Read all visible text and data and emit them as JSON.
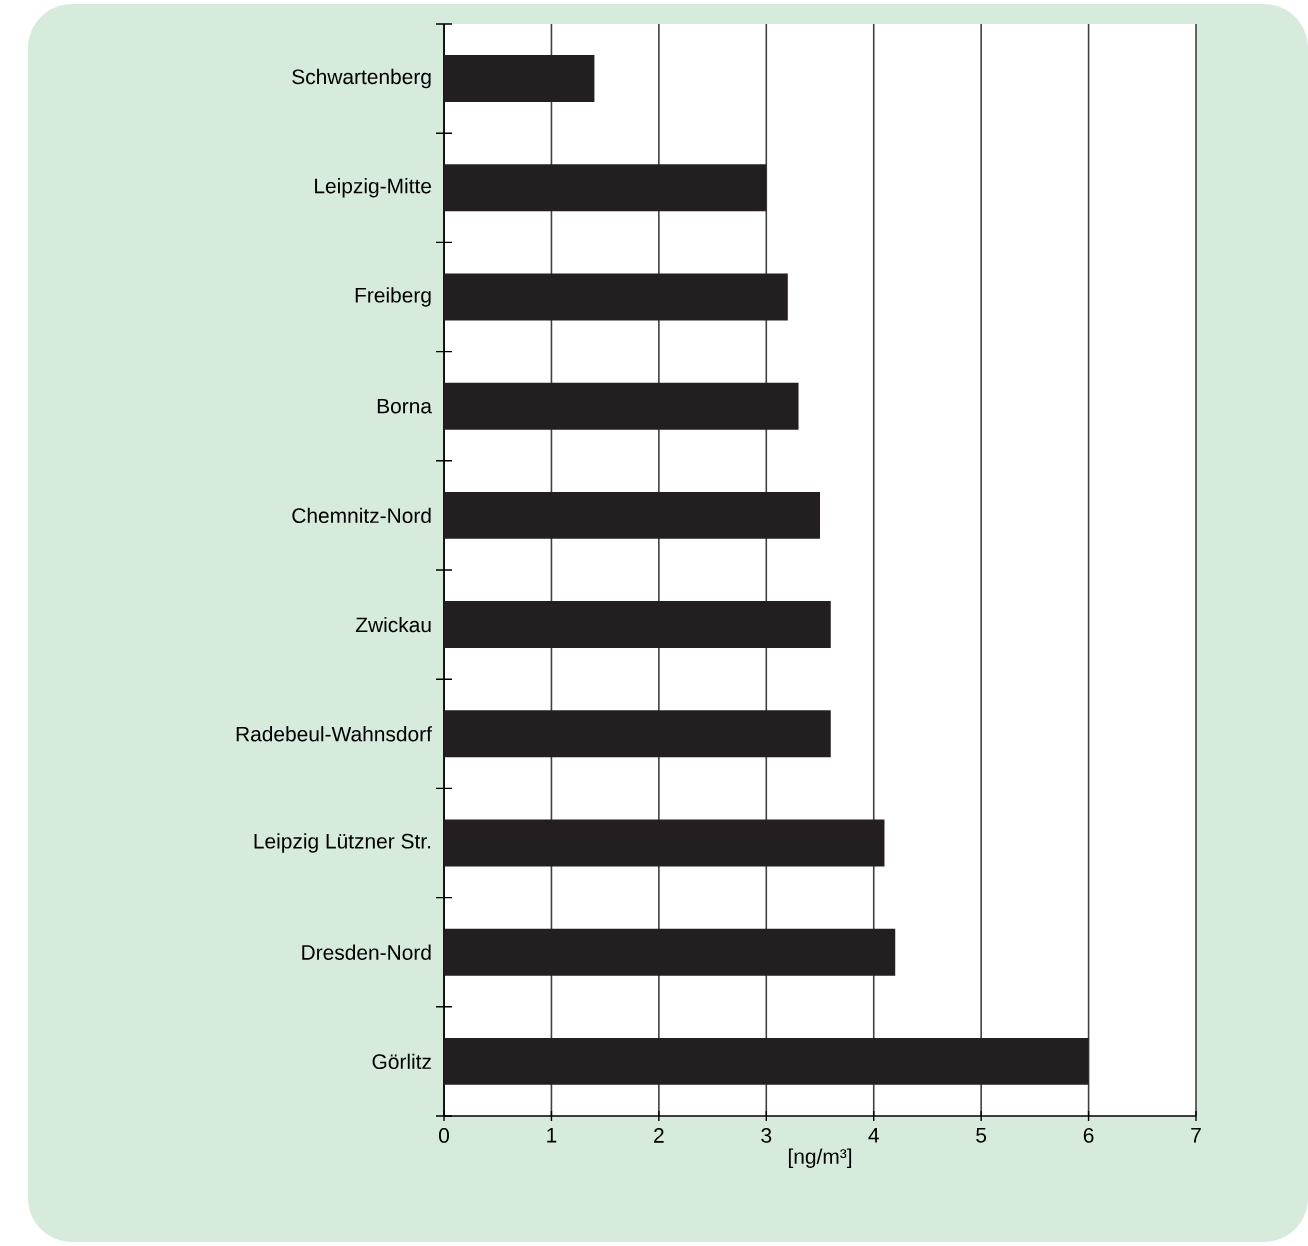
{
  "chart_data": {
    "type": "bar",
    "orientation": "horizontal",
    "xlabel": "[ng/m³]",
    "categories": [
      "Schwartenberg",
      "Leipzig-Mitte",
      "Freiberg",
      "Borna",
      "Chemnitz-Nord",
      "Zwickau",
      "Radebeul-Wahnsdorf",
      "Leipzig Lützner Str.",
      "Dresden-Nord",
      "Görlitz"
    ],
    "values": [
      1.4,
      3.0,
      3.2,
      3.3,
      3.5,
      3.6,
      3.6,
      4.1,
      4.2,
      6.0
    ],
    "color": "#231f20",
    "xlim": [
      0,
      7
    ],
    "xticks": [
      0,
      1,
      2,
      3,
      4,
      5,
      6,
      7
    ],
    "grid": "x"
  }
}
